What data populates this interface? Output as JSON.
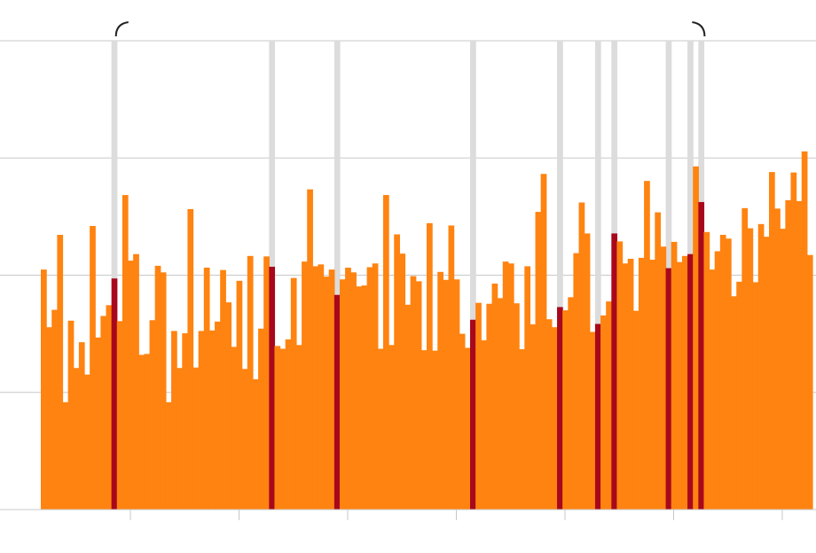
{
  "chart_data": {
    "type": "bar",
    "title": "",
    "xlabel": "",
    "ylabel": "",
    "ylim": [
      0,
      100
    ],
    "grid": true,
    "legend": "none",
    "colors": {
      "bar": "#ff8310",
      "highlight": "#a8081c",
      "highlight_track": "#dcdcdc",
      "gridline": "#c8c8c8",
      "axis": "#c8c8c8",
      "bracket": "#222222"
    },
    "values": [
      51.2,
      38.9,
      42.6,
      58.6,
      22.9,
      40.3,
      30.2,
      35.7,
      28.8,
      60.5,
      36.7,
      41.3,
      43.6,
      49.3,
      40.2,
      67.1,
      53.1,
      54.5,
      33.0,
      33.2,
      40.4,
      52.0,
      50.6,
      22.9,
      38.1,
      30.2,
      37.6,
      64.1,
      30.3,
      38.1,
      51.6,
      38.2,
      40.1,
      51.1,
      44.2,
      34.7,
      48.8,
      30.0,
      54.1,
      27.8,
      38.6,
      54.0,
      51.8,
      34.9,
      34.3,
      36.3,
      49.4,
      35.1,
      52.9,
      68.3,
      51.9,
      52.3,
      49.7,
      51.2,
      45.8,
      49.1,
      51.6,
      50.6,
      47.6,
      47.8,
      51.7,
      52.5,
      34.3,
      67.1,
      35.1,
      58.7,
      54.6,
      43.7,
      49.8,
      48.7,
      34.0,
      61.1,
      33.9,
      50.7,
      49.0,
      60.6,
      49.1,
      37.5,
      34.5,
      40.5,
      44.1,
      36.1,
      43.9,
      48.2,
      45.1,
      52.9,
      52.5,
      44.0,
      34.2,
      51.9,
      39.5,
      63.5,
      71.6,
      40.6,
      38.9,
      43.2,
      42.5,
      45.3,
      54.7,
      65.5,
      58.9,
      37.9,
      39.6,
      41.4,
      44.4,
      58.9,
      57.2,
      52.5,
      53.5,
      42.4,
      53.7,
      70.1,
      53.3,
      63.4,
      56.1,
      51.5,
      57.1,
      52.8,
      54.1,
      54.5,
      73.2,
      65.6,
      59.2,
      51.2,
      55.1,
      58.6,
      57.8,
      45.5,
      48.6,
      64.3,
      60.0,
      48.5,
      60.9,
      58.2,
      72.0,
      64.2,
      59.9,
      66.0,
      71.9,
      65.8,
      76.4,
      54.3
    ],
    "highlighted_bars": [
      13,
      42,
      54,
      79,
      95,
      102,
      105,
      115,
      119,
      121
    ],
    "baseline_marker_range": [
      13,
      121
    ],
    "x_tick_count": 7,
    "y_ticks": [
      0,
      25,
      50,
      75,
      100
    ]
  }
}
